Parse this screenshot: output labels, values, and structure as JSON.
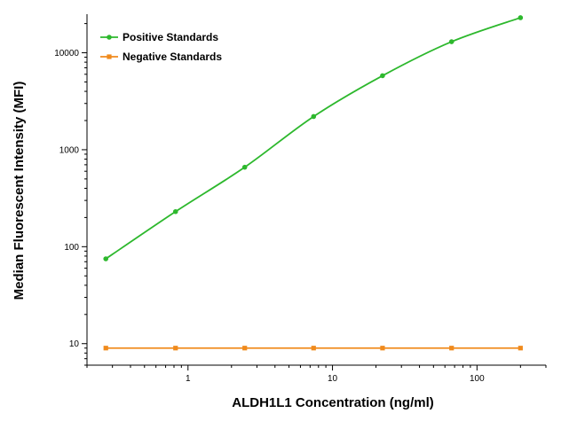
{
  "chart_data": {
    "type": "line",
    "title": "",
    "xlabel": "ALDH1L1 Concentration (ng/ml)",
    "ylabel": "Median Fluorescent Intensity (MFI)",
    "x_scale": "log",
    "y_scale": "log",
    "xlim": [
      0.2,
      300
    ],
    "ylim": [
      6,
      25000
    ],
    "x_ticks": [
      1,
      10,
      100
    ],
    "x_tick_labels": [
      "1",
      "10",
      "100"
    ],
    "y_ticks": [
      10,
      100,
      1000,
      10000
    ],
    "y_tick_labels": [
      "10",
      "100",
      "1000",
      "10000"
    ],
    "grid": false,
    "legend_position": "top-left",
    "series": [
      {
        "name": "Positive Standards",
        "color": "#2db82d",
        "marker": "circle",
        "x": [
          0.27,
          0.82,
          2.47,
          7.4,
          22.2,
          66.7,
          200
        ],
        "y": [
          75,
          230,
          660,
          2200,
          5800,
          13000,
          23000
        ]
      },
      {
        "name": "Negative Standards",
        "color": "#f08a1c",
        "marker": "square",
        "x": [
          0.27,
          0.82,
          2.47,
          7.4,
          22.2,
          66.7,
          200
        ],
        "y": [
          9,
          9,
          9,
          9,
          9,
          9,
          9
        ]
      }
    ]
  }
}
